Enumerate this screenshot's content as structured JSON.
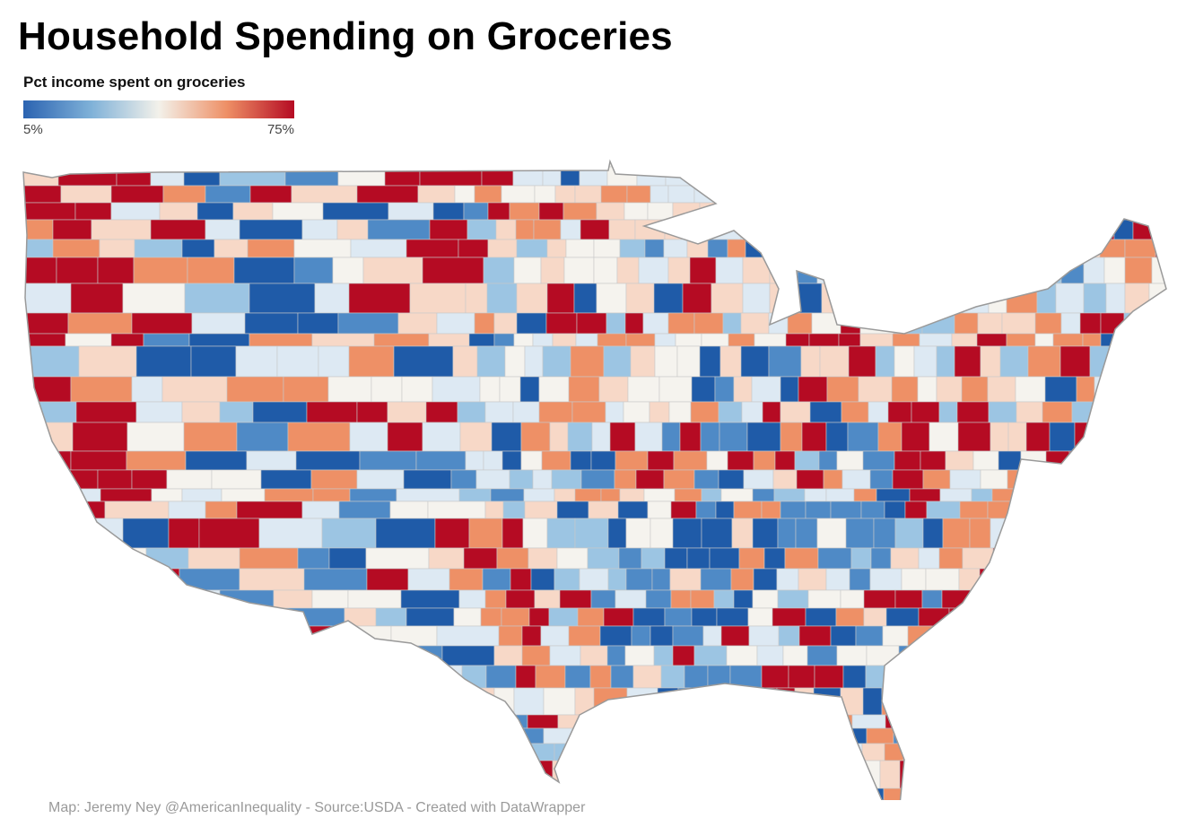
{
  "title": "Household Spending on Groceries",
  "legend": {
    "title": "Pct income spent on groceries",
    "min_label": "5%",
    "max_label": "75%",
    "stops": [
      "#2b63b1",
      "#7fb1d8",
      "#f3f1ea",
      "#ee9066",
      "#b50b23"
    ]
  },
  "map": {
    "type": "choropleth",
    "region": "contiguous-us-counties",
    "metric": "Pct income spent on groceries",
    "color_scale": {
      "min": 5,
      "max": 75,
      "unit": "%"
    }
  },
  "footer": "Map: Jeremy Ney @AmericanInequality - Source:USDA - Created with DataWrapper"
}
